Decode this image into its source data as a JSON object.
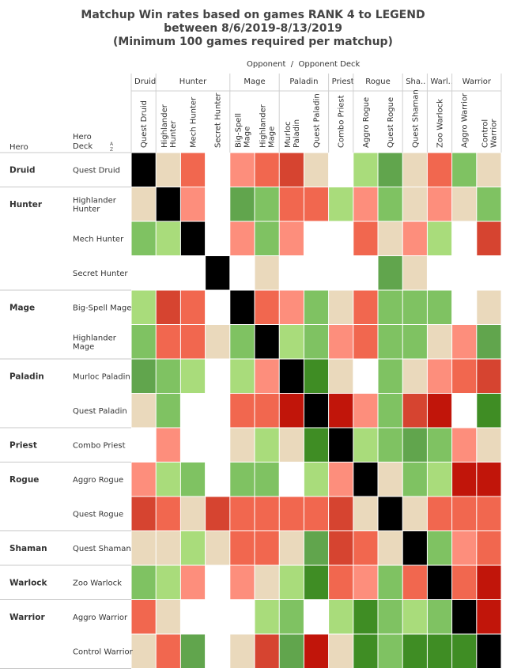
{
  "header": {
    "title_line1": "Matchup Win rates based on games RANK 4 to LEGEND",
    "title_line2": "between 8/6/2019-8/13/2019",
    "title_line3": "(Minimum 100 games required per matchup)",
    "opponent_caption": "Opponent  /  Opponent Deck",
    "hero_col_label": "Hero",
    "hero_deck_label": "Hero\nDeck",
    "sort_icon": "sort-descending-icon"
  },
  "chart_data": {
    "type": "heatmap",
    "opponent_heroes": [
      {
        "name": "Druid",
        "decks": [
          "Quest Druid"
        ]
      },
      {
        "name": "Hunter",
        "decks": [
          "Highlander Hunter",
          "Mech Hunter",
          "Secret Hunter"
        ]
      },
      {
        "name": "Mage",
        "decks": [
          "Big-Spell Mage",
          "Highlander Mage"
        ]
      },
      {
        "name": "Paladin",
        "decks": [
          "Murloc Paladin",
          "Quest Paladin"
        ]
      },
      {
        "name": "Priest",
        "decks": [
          "Combo Priest"
        ]
      },
      {
        "name": "Rogue",
        "decks": [
          "Aggro Rogue",
          "Quest Rogue"
        ]
      },
      {
        "name": "Sha..",
        "decks": [
          "Quest Shaman"
        ]
      },
      {
        "name": "Warl..",
        "decks": [
          "Zoo Warlock"
        ]
      },
      {
        "name": "Warrior",
        "decks": [
          "Aggro Warrior",
          "Control Warrior"
        ]
      }
    ],
    "columns": [
      "Quest Druid",
      "Highlander Hunter",
      "Mech Hunter",
      "Secret Hunter",
      "Big-Spell Mage",
      "Highlander Mage",
      "Murloc Paladin",
      "Quest Paladin",
      "Combo Priest",
      "Aggro Rogue",
      "Quest Rogue",
      "Quest Shaman",
      "Zoo Warlock",
      "Aggro Warrior",
      "Control Warrior"
    ],
    "hero_groups": [
      {
        "name": "Druid",
        "rows": 1
      },
      {
        "name": "Hunter",
        "rows": 3
      },
      {
        "name": "Mage",
        "rows": 2
      },
      {
        "name": "Paladin",
        "rows": 2
      },
      {
        "name": "Priest",
        "rows": 1
      },
      {
        "name": "Rogue",
        "rows": 2
      },
      {
        "name": "Shaman",
        "rows": 1
      },
      {
        "name": "Warlock",
        "rows": 1
      },
      {
        "name": "Warrior",
        "rows": 2
      }
    ],
    "row_decks": [
      [
        "Quest Druid"
      ],
      [
        "Highlander",
        "Hunter"
      ],
      [
        "Mech Hunter"
      ],
      [
        "Secret Hunter"
      ],
      [
        "Big-Spell Mage"
      ],
      [
        "Highlander",
        "Mage"
      ],
      [
        "Murloc Paladin"
      ],
      [
        "Quest Paladin"
      ],
      [
        "Combo Priest"
      ],
      [
        "Aggro Rogue"
      ],
      [
        "Quest Rogue"
      ],
      [
        "Quest Shaman"
      ],
      [
        "Zoo Warlock"
      ],
      [
        "Aggro Warrior"
      ],
      [
        "Control Warrior"
      ]
    ],
    "color_scale": {
      "K": "#000000",
      "W": "#ffffff",
      "N": "#ead9bc",
      "g1": "#a9dc7b",
      "g2": "#7fc262",
      "g3": "#61a54d",
      "g4": "#3f8d24",
      "r1": "#fd8e7c",
      "r2": "#f1674f",
      "r3": "#d64430",
      "r4": "#c1150a"
    },
    "cells": [
      [
        "K",
        "N",
        "r2",
        "W",
        "r1",
        "r2",
        "r3",
        "N",
        "W",
        "g1",
        "g3",
        "N",
        "r2",
        "g2",
        "N"
      ],
      [
        "N",
        "K",
        "r1",
        "W",
        "g3",
        "g2",
        "r2",
        "r2",
        "g1",
        "r1",
        "g2",
        "N",
        "r1",
        "N",
        "g2"
      ],
      [
        "g2",
        "g1",
        "K",
        "W",
        "r1",
        "g2",
        "r1",
        "W",
        "W",
        "r2",
        "N",
        "r1",
        "g1",
        "W",
        "r3"
      ],
      [
        "W",
        "W",
        "W",
        "K",
        "W",
        "N",
        "W",
        "W",
        "W",
        "W",
        "g3",
        "N",
        "W",
        "W",
        "W"
      ],
      [
        "g1",
        "r3",
        "r2",
        "W",
        "K",
        "r2",
        "r1",
        "g2",
        "N",
        "r2",
        "g2",
        "g2",
        "g2",
        "W",
        "N"
      ],
      [
        "g2",
        "r2",
        "r2",
        "N",
        "g2",
        "K",
        "g1",
        "g2",
        "r1",
        "r2",
        "g2",
        "g2",
        "N",
        "r1",
        "g3"
      ],
      [
        "g3",
        "g2",
        "g1",
        "W",
        "g1",
        "r1",
        "K",
        "g4",
        "N",
        "W",
        "g2",
        "N",
        "r1",
        "r2",
        "r3"
      ],
      [
        "N",
        "g2",
        "W",
        "W",
        "r2",
        "r2",
        "r4",
        "K",
        "r4",
        "r1",
        "g2",
        "r3",
        "r4",
        "W",
        "g4"
      ],
      [
        "W",
        "r1",
        "W",
        "W",
        "N",
        "g1",
        "N",
        "g4",
        "K",
        "g1",
        "g2",
        "g3",
        "g2",
        "r1",
        "N"
      ],
      [
        "r1",
        "g1",
        "g2",
        "W",
        "g2",
        "g2",
        "W",
        "g1",
        "r1",
        "K",
        "N",
        "g2",
        "g1",
        "r4",
        "r4"
      ],
      [
        "r3",
        "r2",
        "N",
        "r3",
        "r2",
        "r2",
        "r2",
        "r2",
        "r3",
        "N",
        "K",
        "N",
        "r2",
        "r2",
        "r2"
      ],
      [
        "N",
        "N",
        "g1",
        "N",
        "r2",
        "r2",
        "N",
        "g3",
        "r3",
        "r2",
        "N",
        "K",
        "g2",
        "r1",
        "r2"
      ],
      [
        "g2",
        "g1",
        "r1",
        "W",
        "r1",
        "N",
        "g1",
        "g4",
        "r2",
        "r1",
        "g2",
        "r2",
        "K",
        "r2",
        "r4"
      ],
      [
        "r2",
        "N",
        "W",
        "W",
        "W",
        "g1",
        "g2",
        "W",
        "g1",
        "g4",
        "g2",
        "g1",
        "g2",
        "K",
        "r4"
      ],
      [
        "N",
        "r2",
        "g3",
        "W",
        "N",
        "r3",
        "g3",
        "r4",
        "N",
        "g4",
        "g2",
        "g4",
        "g4",
        "g4",
        "K"
      ]
    ]
  }
}
